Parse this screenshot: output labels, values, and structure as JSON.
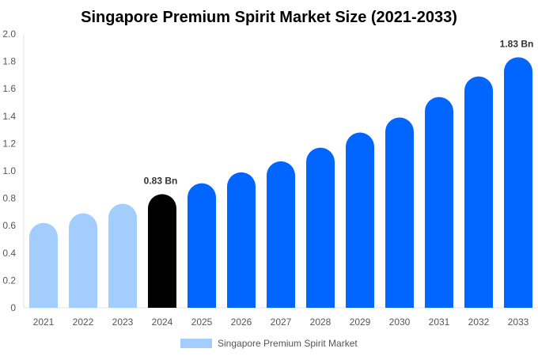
{
  "chart_data": {
    "type": "bar",
    "title": "Singapore Premium Spirit Market Size (2021-2033)",
    "xlabel": "",
    "ylabel": "",
    "ylim": [
      0,
      2.0
    ],
    "yticks": [
      "0",
      "0.2",
      "0.4",
      "0.6",
      "0.8",
      "1.0",
      "1.2",
      "1.4",
      "1.6",
      "1.8",
      "2.0"
    ],
    "categories": [
      "2021",
      "2022",
      "2023",
      "2024",
      "2025",
      "2026",
      "2027",
      "2028",
      "2029",
      "2030",
      "2031",
      "2032",
      "2033"
    ],
    "values": [
      0.62,
      0.69,
      0.76,
      0.83,
      0.91,
      0.99,
      1.07,
      1.17,
      1.28,
      1.39,
      1.54,
      1.69,
      1.83
    ],
    "bar_colors": [
      "#a3cdfd",
      "#a3cdfd",
      "#a3cdfd",
      "#000000",
      "#0066ff",
      "#0066ff",
      "#0066ff",
      "#0066ff",
      "#0066ff",
      "#0066ff",
      "#0066ff",
      "#0066ff",
      "#0066ff"
    ],
    "data_labels": [
      {
        "category": "2024",
        "text": "0.83 Bn"
      },
      {
        "category": "2033",
        "text": "1.83 Bn"
      }
    ],
    "legend": {
      "position": "bottom",
      "entries": [
        {
          "name": "Singapore Premium Spirit Market",
          "color": "#a3cdfd"
        }
      ]
    },
    "grid": false
  }
}
